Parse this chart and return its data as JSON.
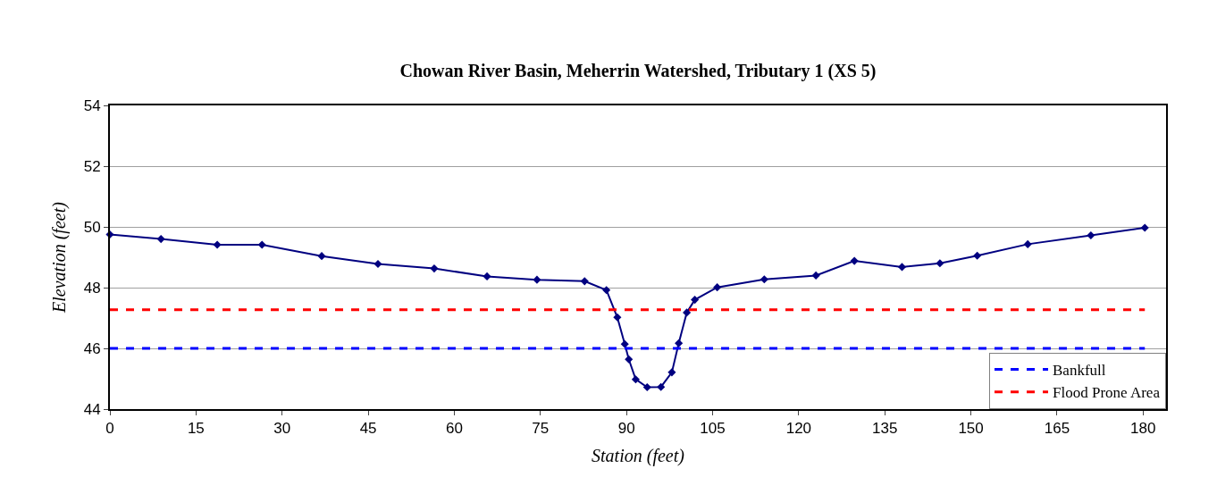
{
  "chart_data": {
    "type": "line",
    "title": "Chowan River Basin, Meherrin Watershed, Tributary 1 (XS 5)",
    "xlabel": "Station (feet)",
    "ylabel": "Elevation (feet)",
    "x": [
      0,
      8.9,
      18.7,
      26.5,
      36.9,
      46.7,
      56.5,
      65.7,
      74.4,
      82.7,
      86.5,
      88.4,
      89.7,
      90.4,
      91.6,
      93.6,
      96.0,
      97.9,
      99.1,
      100.5,
      101.9,
      105.8,
      114.0,
      123.0,
      129.7,
      138.0,
      144.6,
      151.1,
      159.9,
      170.9,
      180.3
    ],
    "series": [
      {
        "color": "#000080",
        "values": [
          49.75,
          49.6,
          49.41,
          49.41,
          49.04,
          48.78,
          48.63,
          48.37,
          48.26,
          48.21,
          47.92,
          47.02,
          46.14,
          45.64,
          44.98,
          44.72,
          44.73,
          45.21,
          46.17,
          47.18,
          47.6,
          48.01,
          48.27,
          48.4,
          48.88,
          48.68,
          48.8,
          49.05,
          49.43,
          49.72,
          49.97
        ],
        "marker": "diamond",
        "line_style": "solid"
      },
      {
        "name": "Bankfull",
        "color": "#0000ff",
        "values": [
          46.0,
          46.0,
          46.0,
          46.0,
          46.0,
          46.0,
          46.0,
          46.0,
          46.0,
          46.0,
          46.0,
          46.0,
          46.0,
          46.0,
          46.0,
          46.0,
          46.0,
          46.0,
          46.0,
          46.0,
          46.0,
          46.0,
          46.0,
          46.0,
          46.0,
          46.0,
          46.0,
          46.0,
          46.0,
          46.0,
          46.0
        ],
        "marker": "none",
        "line_style": "dashed"
      },
      {
        "name": "Flood Prone Area",
        "color": "#ff0000",
        "values": [
          47.27,
          47.27,
          47.27,
          47.27,
          47.27,
          47.27,
          47.27,
          47.27,
          47.27,
          47.27,
          47.27,
          47.27,
          47.27,
          47.27,
          47.27,
          47.27,
          47.27,
          47.27,
          47.27,
          47.27,
          47.27,
          47.27,
          47.27,
          47.27,
          47.27,
          47.27,
          47.27,
          47.27,
          47.27,
          47.27,
          47.27
        ],
        "marker": "none",
        "line_style": "dashed"
      }
    ],
    "xlim": [
      0,
      184
    ],
    "xticks": [
      0,
      15,
      30,
      45,
      60,
      75,
      90,
      105,
      120,
      135,
      150,
      165,
      180
    ],
    "ylim": [
      44,
      54
    ],
    "yticks": [
      44,
      46,
      48,
      50,
      52,
      54
    ],
    "grid": "y",
    "legend": "bottom right"
  }
}
